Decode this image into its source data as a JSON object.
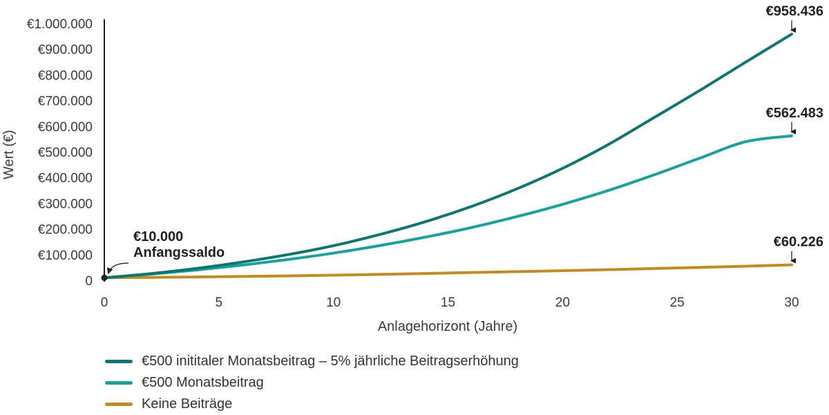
{
  "chart_data": {
    "type": "line",
    "xlabel": "Anlagehorizont (Jahre)",
    "ylabel": "Wert (€)",
    "xlim": [
      0,
      30
    ],
    "ylim": [
      0,
      1000000
    ],
    "x_ticks": [
      0,
      5,
      10,
      15,
      20,
      25,
      30
    ],
    "x_tick_labels": [
      "0",
      "5",
      "10",
      "15",
      "20",
      "25",
      "30"
    ],
    "y_ticks": [
      0,
      100000,
      200000,
      300000,
      400000,
      500000,
      600000,
      700000,
      800000,
      900000,
      1000000
    ],
    "y_tick_labels": [
      "0",
      "€100.000",
      "€200.000",
      "€300.000",
      "€400.000",
      "€500.000",
      "€600.000",
      "€700.000",
      "€800.000",
      "€900.000",
      "€1.000.000"
    ],
    "grid": false,
    "legend_position": "bottom-left",
    "x": [
      0,
      2,
      4,
      6,
      8,
      10,
      12,
      14,
      16,
      18,
      20,
      22,
      24,
      26,
      28,
      30
    ],
    "series": [
      {
        "name": "€500 inititaler Monatsbeitrag – 5% jährliche Beitragserhöhung",
        "color": "#0d7670",
        "values": [
          10000,
          26000,
          46000,
          71000,
          100000,
          135000,
          178000,
          228000,
          287000,
          356000,
          436000,
          529000,
          634000,
          740000,
          850000,
          958436
        ]
      },
      {
        "name": "€500 Monatsbeitrag",
        "color": "#16a39c",
        "values": [
          10000,
          24000,
          40000,
          59000,
          81000,
          106000,
          135000,
          168000,
          205000,
          248000,
          296000,
          350000,
          411000,
          476000,
          540000,
          562483
        ]
      },
      {
        "name": "Keine Beiträge",
        "color": "#c68b1c",
        "values": [
          10000,
          11500,
          13200,
          15200,
          17500,
          20100,
          23100,
          26500,
          30500,
          33800,
          37500,
          41500,
          46000,
          50500,
          55200,
          60226
        ]
      }
    ],
    "annotations": [
      {
        "value": "€10.000",
        "label": "Anfangssaldo",
        "x": 0,
        "y": 10000
      },
      {
        "value": "€958.436",
        "x": 30,
        "y": 958436
      },
      {
        "value": "€562.483",
        "x": 30,
        "y": 562483
      },
      {
        "value": "€60.226",
        "x": 30,
        "y": 60226
      }
    ]
  }
}
